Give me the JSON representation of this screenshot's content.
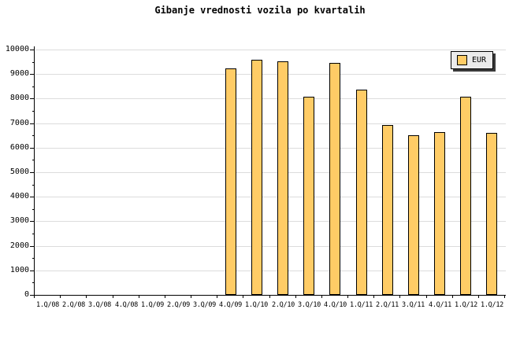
{
  "title": "Gibanje vrednosti vozila po kvartalih",
  "legend": {
    "label": "EUR",
    "swatch_color": "#FFCC66"
  },
  "chart_data": {
    "type": "bar",
    "title": "Gibanje vrednosti vozila po kvartalih",
    "categories": [
      "1.Q/08",
      "2.Q/08",
      "3.Q/08",
      "4.Q/08",
      "1.Q/09",
      "2.Q/09",
      "3.Q/09",
      "4.Q/09",
      "1.Q/10",
      "2.Q/10",
      "3.Q/10",
      "4.Q/10",
      "1.Q/11",
      "2.Q/11",
      "3.Q/11",
      "4.Q/11",
      "1.Q/12",
      "1.Q/12"
    ],
    "series": [
      {
        "name": "EUR",
        "values": [
          null,
          null,
          null,
          null,
          null,
          null,
          null,
          9230,
          9580,
          9520,
          8080,
          9440,
          8370,
          6930,
          6510,
          6640,
          8080,
          6600
        ]
      }
    ],
    "xlabel": "",
    "ylabel": "",
    "ylim": [
      0,
      10000
    ],
    "yticks": [
      0,
      1000,
      2000,
      3000,
      4000,
      5000,
      6000,
      7000,
      8000,
      9000,
      10000
    ],
    "ytick_minor_interval": 500,
    "grid": "horizontal-major-only",
    "legend_position": "top-right",
    "colors": {
      "bar_fill": "#FFCC66",
      "bar_border": "#000000",
      "grid": "#DCDCDC",
      "axis": "#000000",
      "background": "#FFFFFF",
      "legend_bg": "#EBEBEB",
      "text": "#000000"
    }
  }
}
